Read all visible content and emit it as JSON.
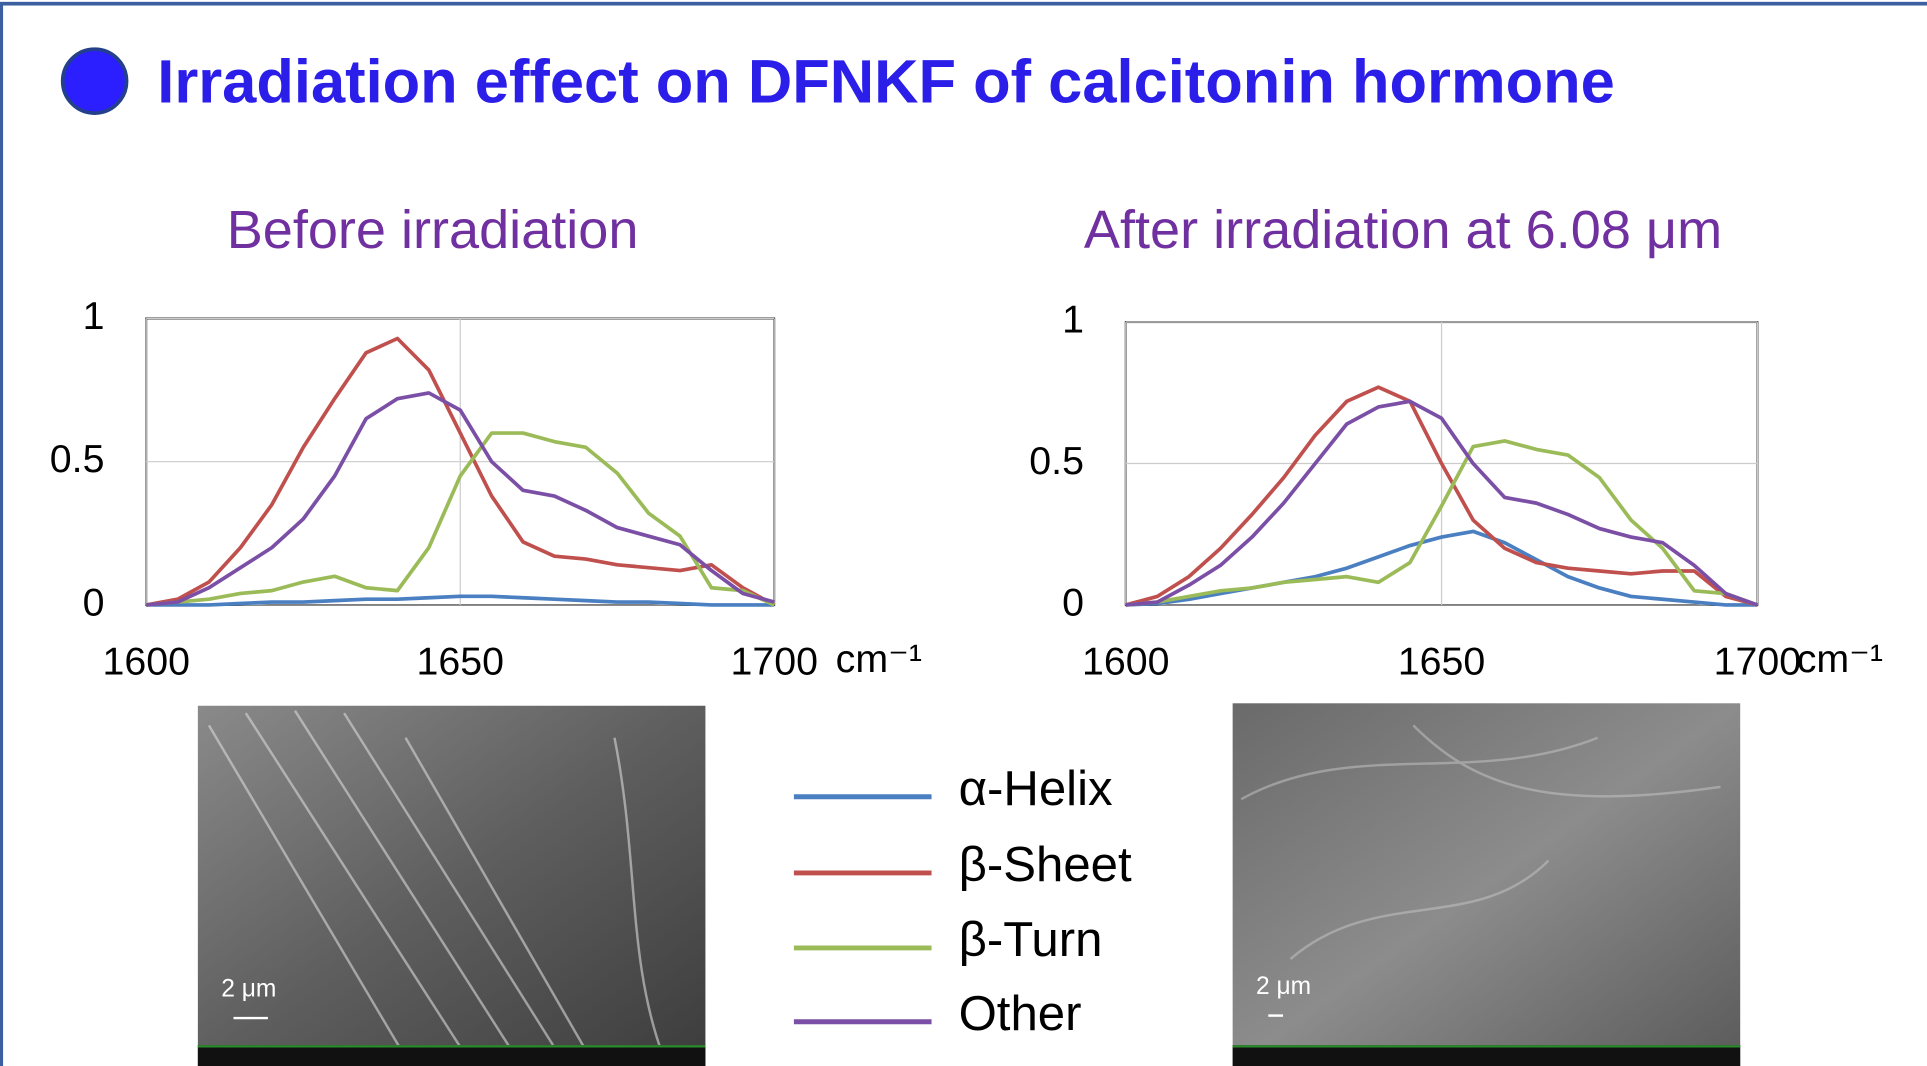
{
  "title": "Irradiation effect on DFNKF of calcitonin hormone",
  "chart_data": [
    {
      "type": "line",
      "title": "Before irradiation",
      "xlabel": "cm⁻¹",
      "x": [
        1600,
        1605,
        1610,
        1615,
        1620,
        1625,
        1630,
        1635,
        1640,
        1645,
        1650,
        1655,
        1660,
        1665,
        1670,
        1675,
        1680,
        1685,
        1690,
        1695,
        1700
      ],
      "xlim": [
        1600,
        1700
      ],
      "xticks": [
        1600,
        1650,
        1700
      ],
      "ylim": [
        0,
        1
      ],
      "yticks": [
        0,
        0.5,
        1
      ],
      "grid": true,
      "series": [
        {
          "name": "α-Helix",
          "color": "#4a7fc1",
          "values": [
            0,
            0,
            0,
            0.005,
            0.01,
            0.01,
            0.015,
            0.02,
            0.02,
            0.025,
            0.03,
            0.03,
            0.025,
            0.02,
            0.015,
            0.01,
            0.01,
            0.005,
            0,
            0,
            0
          ]
        },
        {
          "name": "β-Sheet",
          "color": "#c0504d",
          "values": [
            0,
            0.02,
            0.08,
            0.2,
            0.35,
            0.55,
            0.72,
            0.88,
            0.93,
            0.82,
            0.6,
            0.38,
            0.22,
            0.17,
            0.16,
            0.14,
            0.13,
            0.12,
            0.14,
            0.06,
            0
          ]
        },
        {
          "name": "β-Turn",
          "color": "#9bbb59",
          "values": [
            0,
            0.01,
            0.02,
            0.04,
            0.05,
            0.08,
            0.1,
            0.06,
            0.05,
            0.2,
            0.45,
            0.6,
            0.6,
            0.57,
            0.55,
            0.46,
            0.32,
            0.24,
            0.06,
            0.05,
            0
          ]
        },
        {
          "name": "Other",
          "color": "#7b4fa6",
          "values": [
            0,
            0.01,
            0.06,
            0.13,
            0.2,
            0.3,
            0.45,
            0.65,
            0.72,
            0.74,
            0.68,
            0.5,
            0.4,
            0.38,
            0.33,
            0.27,
            0.24,
            0.21,
            0.12,
            0.04,
            0.01
          ]
        }
      ]
    },
    {
      "type": "line",
      "title": "After irradiation at 6.08 μm",
      "xlabel": "cm⁻¹",
      "x": [
        1600,
        1605,
        1610,
        1615,
        1620,
        1625,
        1630,
        1635,
        1640,
        1645,
        1650,
        1655,
        1660,
        1665,
        1670,
        1675,
        1680,
        1685,
        1690,
        1695,
        1700
      ],
      "xlim": [
        1600,
        1700
      ],
      "xticks": [
        1600,
        1650,
        1700
      ],
      "ylim": [
        0,
        1
      ],
      "yticks": [
        0,
        0.5,
        1
      ],
      "grid": true,
      "series": [
        {
          "color": "#4a7fc1",
          "values": [
            0,
            0.005,
            0.02,
            0.04,
            0.06,
            0.08,
            0.1,
            0.13,
            0.17,
            0.21,
            0.24,
            0.26,
            0.22,
            0.16,
            0.1,
            0.06,
            0.03,
            0.02,
            0.01,
            0,
            0
          ]
        },
        {
          "color": "#c0504d",
          "values": [
            0,
            0.03,
            0.1,
            0.2,
            0.32,
            0.45,
            0.6,
            0.72,
            0.77,
            0.72,
            0.5,
            0.3,
            0.2,
            0.15,
            0.13,
            0.12,
            0.11,
            0.12,
            0.12,
            0.03,
            0
          ]
        },
        {
          "color": "#9bbb59",
          "values": [
            0,
            0.01,
            0.03,
            0.05,
            0.06,
            0.08,
            0.09,
            0.1,
            0.08,
            0.15,
            0.35,
            0.56,
            0.58,
            0.55,
            0.53,
            0.45,
            0.3,
            0.2,
            0.05,
            0.04,
            0
          ]
        },
        {
          "color": "#7b4fa6",
          "values": [
            0,
            0.01,
            0.07,
            0.14,
            0.24,
            0.36,
            0.5,
            0.64,
            0.7,
            0.72,
            0.66,
            0.5,
            0.38,
            0.36,
            0.32,
            0.27,
            0.24,
            0.22,
            0.14,
            0.04,
            0
          ]
        }
      ]
    }
  ],
  "images": [
    {
      "scale_label": "2 μm"
    },
    {
      "scale_label": "2 μm"
    }
  ]
}
